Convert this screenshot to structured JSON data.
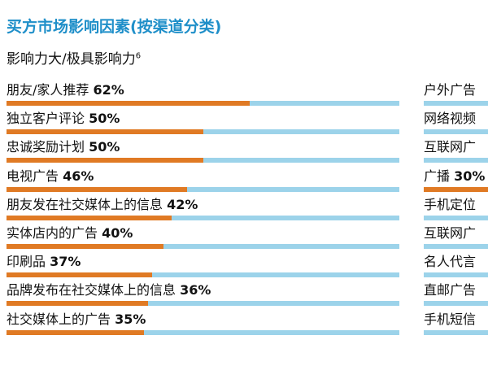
{
  "chart_data": {
    "type": "bar",
    "orientation": "horizontal",
    "title": "买方市场影响因素(按渠道分类)",
    "subtitle": "影响力大/极具影响力",
    "subtitle_footnote": "6",
    "xlim": [
      0,
      100
    ],
    "grid": false,
    "legend": "none",
    "colors": {
      "fill": "#E07A24",
      "track": "#9CD3EA",
      "title": "#1F8FC9"
    },
    "left_column": [
      {
        "category": "朋友/家人推荐",
        "value": 62,
        "label": "62%"
      },
      {
        "category": "独立客户评论",
        "value": 50,
        "label": "50%"
      },
      {
        "category": "忠诚奖励计划",
        "value": 50,
        "label": "50%"
      },
      {
        "category": "电视广告",
        "value": 46,
        "label": "46%"
      },
      {
        "category": "朋友发在社交媒体上的信息",
        "value": 42,
        "label": "42%"
      },
      {
        "category": "实体店内的广告",
        "value": 40,
        "label": "40%"
      },
      {
        "category": "印刷品",
        "value": 37,
        "label": "37%"
      },
      {
        "category": "品牌发布在社交媒体上的信息",
        "value": 36,
        "label": "36%"
      },
      {
        "category": "社交媒体上的广告",
        "value": 35,
        "label": "35%"
      }
    ],
    "right_column": [
      {
        "category": "户外广告",
        "value": null,
        "label": ""
      },
      {
        "category": "网络视频",
        "value": null,
        "label": ""
      },
      {
        "category": "互联网广",
        "value": null,
        "label": ""
      },
      {
        "category": "广播",
        "value": 30,
        "label": "30%"
      },
      {
        "category": "手机定位",
        "value": null,
        "label": ""
      },
      {
        "category": "互联网广",
        "value": null,
        "label": ""
      },
      {
        "category": "名人代言",
        "value": null,
        "label": ""
      },
      {
        "category": "直邮广告",
        "value": null,
        "label": ""
      },
      {
        "category": "手机短信",
        "value": null,
        "label": ""
      }
    ]
  }
}
